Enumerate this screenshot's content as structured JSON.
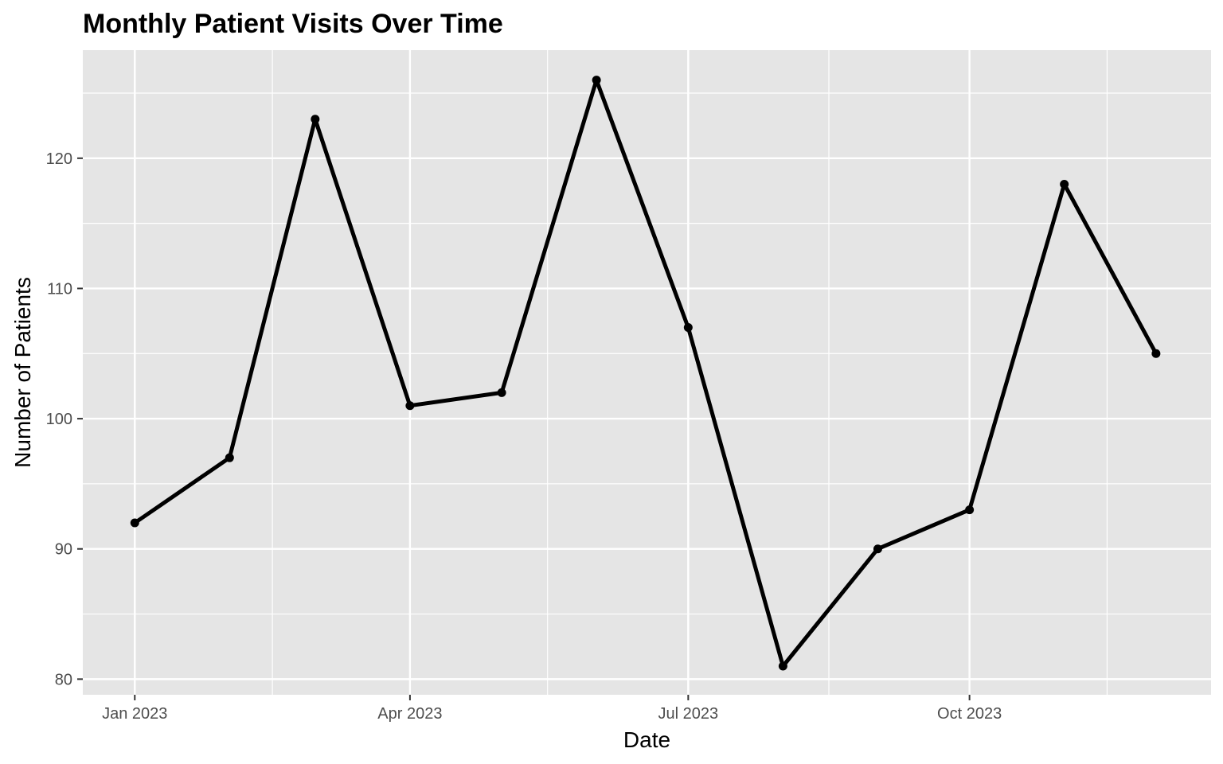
{
  "chart_data": {
    "type": "line",
    "title": "Monthly Patient Visits Over Time",
    "xlabel": "Date",
    "ylabel": "Number of Patients",
    "x": [
      "2023-01-01",
      "2023-02-01",
      "2023-03-01",
      "2023-04-01",
      "2023-05-01",
      "2023-06-01",
      "2023-07-01",
      "2023-08-01",
      "2023-09-01",
      "2023-10-01",
      "2023-11-01",
      "2023-12-01"
    ],
    "series": [
      {
        "values": [
          92,
          97,
          123,
          101,
          102,
          126,
          107,
          81,
          90,
          93,
          118,
          105
        ]
      }
    ],
    "xlim": [
      "2022-12-15",
      "2023-12-19"
    ],
    "ylim": [
      78.8,
      128.3
    ],
    "x_ticks": [
      {
        "date": "2023-01-01",
        "label": "Jan 2023"
      },
      {
        "date": "2023-04-01",
        "label": "Apr 2023"
      },
      {
        "date": "2023-07-01",
        "label": "Jul 2023"
      },
      {
        "date": "2023-10-01",
        "label": "Oct 2023"
      }
    ],
    "x_minor_ticks": [
      "2023-02-15",
      "2023-05-16",
      "2023-08-16",
      "2023-11-15"
    ],
    "y_ticks": [
      80,
      90,
      100,
      110,
      120
    ],
    "y_minor_ticks": [
      85,
      95,
      105,
      115,
      125
    ],
    "grid": true,
    "colors": {
      "panel": "#e5e5e5",
      "grid": "#ffffff",
      "line": "#000000"
    }
  }
}
